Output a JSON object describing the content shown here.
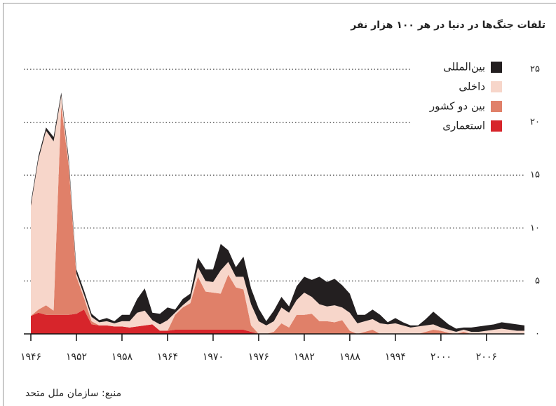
{
  "chart_data": {
    "type": "stacked-area",
    "title": "تلفات جنگ‌ها در دنیا در هر ۱۰۰ هزار نفر",
    "source": "منبع: سازمان ملل متحد",
    "x": [
      1946,
      1947,
      1948,
      1949,
      1950,
      1951,
      1952,
      1953,
      1954,
      1955,
      1956,
      1957,
      1958,
      1959,
      1960,
      1961,
      1962,
      1963,
      1964,
      1965,
      1966,
      1967,
      1968,
      1969,
      1970,
      1971,
      1972,
      1973,
      1974,
      1975,
      1976,
      1977,
      1978,
      1979,
      1980,
      1981,
      1982,
      1983,
      1984,
      1985,
      1986,
      1987,
      1988,
      1989,
      1990,
      1991,
      1992,
      1993,
      1994,
      1995,
      1996,
      1997,
      1998,
      1999,
      2000,
      2001,
      2002,
      2003,
      2004,
      2005,
      2006,
      2007,
      2008,
      2009,
      2010,
      2011
    ],
    "series": [
      {
        "name": "استعماری",
        "color": "#d7252b",
        "values": [
          1.7,
          2.0,
          1.8,
          1.8,
          1.8,
          1.8,
          1.9,
          2.3,
          0.9,
          0.8,
          0.8,
          0.7,
          0.7,
          0.6,
          0.7,
          0.8,
          0.9,
          0.3,
          0.3,
          0.4,
          0.4,
          0.4,
          0.4,
          0.4,
          0.4,
          0.4,
          0.4,
          0.4,
          0.4,
          0.2,
          0,
          0,
          0,
          0,
          0,
          0,
          0,
          0,
          0,
          0,
          0,
          0,
          0,
          0,
          0,
          0,
          0,
          0,
          0,
          0,
          0,
          0,
          0,
          0,
          0,
          0,
          0,
          0,
          0,
          0,
          0,
          0,
          0,
          0,
          0,
          0
        ]
      },
      {
        "name": "بین دو کشور",
        "color": "#e08069",
        "values": [
          0,
          0.3,
          0.9,
          0.4,
          19.8,
          14.0,
          3.5,
          1.1,
          0.3,
          0,
          0,
          0,
          0,
          0,
          0,
          0,
          0,
          0,
          0,
          1.4,
          2.1,
          2.5,
          5.0,
          3.6,
          3.5,
          3.4,
          5.2,
          4.0,
          3.8,
          0.6,
          0,
          0,
          0.2,
          1.0,
          0.6,
          1.8,
          1.8,
          1.9,
          1.2,
          1.2,
          1.1,
          1.3,
          0.3,
          0,
          0.2,
          0.4,
          0,
          0,
          0,
          0,
          0,
          0,
          0.2,
          0.4,
          0.3,
          0.1,
          0,
          0.2,
          0,
          0,
          0,
          0,
          0,
          0,
          0,
          0
        ]
      },
      {
        "name": "داخلی",
        "color": "#f7d6ca",
        "values": [
          10.4,
          14.2,
          16.5,
          16.0,
          0.9,
          0.3,
          0.3,
          0.3,
          0.4,
          0.3,
          0.4,
          0.3,
          0.5,
          0.6,
          1.3,
          1.4,
          0.4,
          0.6,
          1.0,
          0.2,
          0.2,
          0.4,
          0.9,
          1.0,
          1.0,
          2.2,
          1.2,
          1.0,
          1.2,
          2.0,
          1.2,
          0.8,
          1.0,
          1.5,
          1.4,
          1.4,
          2.1,
          1.6,
          1.6,
          1.4,
          1.6,
          1.2,
          1.7,
          1.0,
          1.0,
          1.0,
          1.0,
          0.9,
          1.0,
          0.8,
          0.6,
          0.7,
          0.6,
          0.5,
          0.3,
          0.3,
          0.2,
          0.2,
          0.2,
          0.2,
          0.3,
          0.4,
          0.5,
          0.4,
          0.3,
          0.3
        ]
      },
      {
        "name": "بین‌المللی",
        "color": "#231f20",
        "values": [
          0.3,
          0.3,
          0.3,
          0.4,
          0.3,
          0.4,
          0.4,
          0.4,
          0.3,
          0.2,
          0.3,
          0.2,
          0.6,
          0.6,
          1.3,
          2.1,
          0.7,
          1.0,
          1.2,
          0.3,
          0.6,
          0.5,
          0.9,
          1.1,
          1.2,
          2.5,
          1.1,
          0.9,
          1.9,
          1.5,
          1.2,
          0.4,
          1.0,
          1.0,
          0.6,
          1.3,
          1.5,
          1.6,
          2.6,
          2.3,
          2.5,
          2.1,
          1.8,
          0.8,
          0.6,
          0.9,
          0.8,
          0.2,
          0.5,
          0.3,
          0.2,
          0.1,
          0.6,
          1.2,
          0.9,
          0.5,
          0.3,
          0.2,
          0.4,
          0.5,
          0.5,
          0.5,
          0.6,
          0.6,
          0.6,
          0.5
        ]
      }
    ],
    "xlim": [
      1946,
      2011
    ],
    "xticks": [
      {
        "value": 1946,
        "label": "۱۹۴۶"
      },
      {
        "value": 1952,
        "label": "۱۹۵۲"
      },
      {
        "value": 1958,
        "label": "۱۹۵۸"
      },
      {
        "value": 1964,
        "label": "۱۹۶۴"
      },
      {
        "value": 1970,
        "label": "۱۹۷۰"
      },
      {
        "value": 1976,
        "label": "۱۹۷۶"
      },
      {
        "value": 1982,
        "label": "۱۹۸۲"
      },
      {
        "value": 1988,
        "label": "۱۹۸۸"
      },
      {
        "value": 1994,
        "label": "۱۹۹۴"
      },
      {
        "value": 2000,
        "label": "۲۰۰۰"
      },
      {
        "value": 2006,
        "label": "۲۰۰۶"
      }
    ],
    "ylim": [
      0,
      25
    ],
    "yticks": [
      {
        "value": 0,
        "label": "۰"
      },
      {
        "value": 5,
        "label": "۵"
      },
      {
        "value": 10,
        "label": "۱۰"
      },
      {
        "value": 15,
        "label": "۱۵"
      },
      {
        "value": 20,
        "label": "۲۰"
      },
      {
        "value": 25,
        "label": "۲۵"
      }
    ],
    "grid": true,
    "legend": "top-right"
  }
}
